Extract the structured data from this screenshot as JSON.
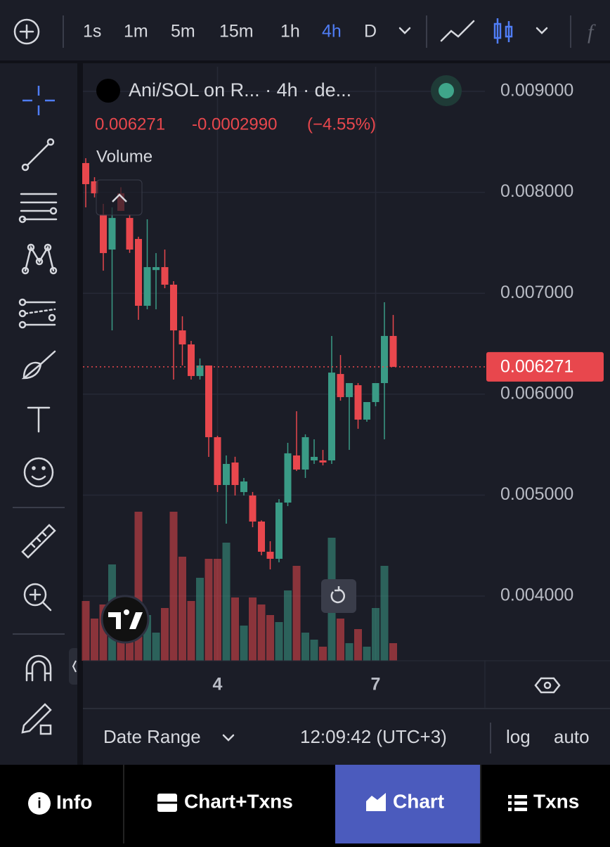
{
  "toolbar": {
    "intervals": [
      "1s",
      "1m",
      "5m",
      "15m",
      "1h",
      "4h",
      "D"
    ]
  },
  "chart_data": {
    "type": "candlestick",
    "symbol": "Ani/SOL on R... · 4h · de...",
    "last_price": 0.006271,
    "change": {
      "value": -0.000299,
      "label": "-0.0002990"
    },
    "change_percent": "(−4.55%)",
    "volume_label": "Volume",
    "categories": [
      null,
      null,
      null,
      null,
      null,
      null,
      null,
      null,
      null,
      null,
      null,
      null,
      null,
      null,
      null,
      "4",
      null,
      null,
      null,
      null,
      null,
      null,
      null,
      null,
      null,
      null,
      null,
      null,
      null,
      null,
      null,
      null,
      null,
      "7",
      null,
      null
    ],
    "open": [
      0.00829,
      0.008109,
      0.007781,
      0.007433,
      0.00799,
      0.007746,
      0.007538,
      0.006876,
      0.00723,
      0.007259,
      0.007085,
      0.006632,
      0.006493,
      0.00618,
      0.006284,
      0.005574,
      0.0051,
      0.005323,
      0.00503,
      0.004996,
      0.004738,
      0.004439,
      0.004369,
      0.004926,
      0.005393,
      0.005253,
      0.005344,
      0.005344,
      0.005344,
      0.0062,
      0.005971,
      0.006089,
      0.005748,
      0.005922,
      0.00611,
      0.006577
    ],
    "high": [
      0.008338,
      0.00815,
      0.007886,
      0.007851,
      0.00805,
      0.00778,
      0.00756,
      0.007733,
      0.007398,
      0.007433,
      0.00712,
      0.006772,
      0.006528,
      0.006354,
      0.006284,
      0.005588,
      0.005393,
      0.00538,
      0.00517,
      0.005031,
      0.00475,
      0.004543,
      0.00496,
      0.005518,
      0.005831,
      0.005602,
      0.005553,
      0.005448,
      0.006577,
      0.006388,
      0.00611,
      0.00611,
      0.005922,
      0.00611,
      0.006911,
      0.006785
    ],
    "low": [
      0.007851,
      0.00795,
      0.007224,
      0.006632,
      0.007816,
      0.0074,
      0.006737,
      0.006841,
      0.006841,
      0.00705,
      0.006145,
      0.006284,
      0.006145,
      0.006145,
      0.005379,
      0.005031,
      0.004717,
      0.004996,
      0.004996,
      0.004682,
      0.004404,
      0.004264,
      0.004334,
      0.004891,
      0.005239,
      0.00517,
      0.005309,
      0.005295,
      0.005309,
      0.005936,
      0.005448,
      0.005657,
      0.005727,
      0.00588,
      0.005553,
      0.006271
    ],
    "close": [
      0.008081,
      0.00799,
      0.007398,
      0.007746,
      0.007816,
      0.007433,
      0.006876,
      0.007259,
      0.007259,
      0.007085,
      0.006632,
      0.006493,
      0.00618,
      0.006284,
      0.005574,
      0.0051,
      0.005309,
      0.0051,
      0.005135,
      0.004738,
      0.004439,
      0.004369,
      0.004926,
      0.005414,
      0.005253,
      0.005574,
      0.005379,
      0.005323,
      0.006214,
      0.005971,
      0.00611,
      0.005748,
      0.005922,
      0.00611,
      0.006577,
      0.006271
    ],
    "volume": [
      85,
      60,
      80,
      137,
      60,
      80,
      212,
      65,
      40,
      75,
      212,
      148,
      85,
      118,
      145,
      145,
      168,
      90,
      50,
      90,
      80,
      65,
      55,
      100,
      135,
      40,
      30,
      20,
      175,
      60,
      25,
      45,
      20,
      75,
      135,
      25
    ],
    "volume_lim": [
      0,
      845
    ],
    "ylim": [
      0.003359,
      0.009244
    ],
    "yticks": [
      {
        "value": 0.004,
        "label": "0.004000"
      },
      {
        "value": 0.005,
        "label": "0.005000"
      },
      {
        "value": 0.006,
        "label": "0.006000"
      },
      {
        "value": 0.007,
        "label": "0.007000"
      },
      {
        "value": 0.008,
        "label": "0.008000"
      },
      {
        "value": 0.009,
        "label": "0.009000"
      }
    ],
    "up_color": "#3a9b86",
    "down_color": "#e8474d",
    "grid": true
  },
  "footer": {
    "date_range": "Date Range",
    "time": "12:09:42 (UTC+3)",
    "log": "log",
    "auto": "auto"
  },
  "tabs": [
    "Info",
    "Chart+Txns",
    "Chart",
    "Txns"
  ]
}
